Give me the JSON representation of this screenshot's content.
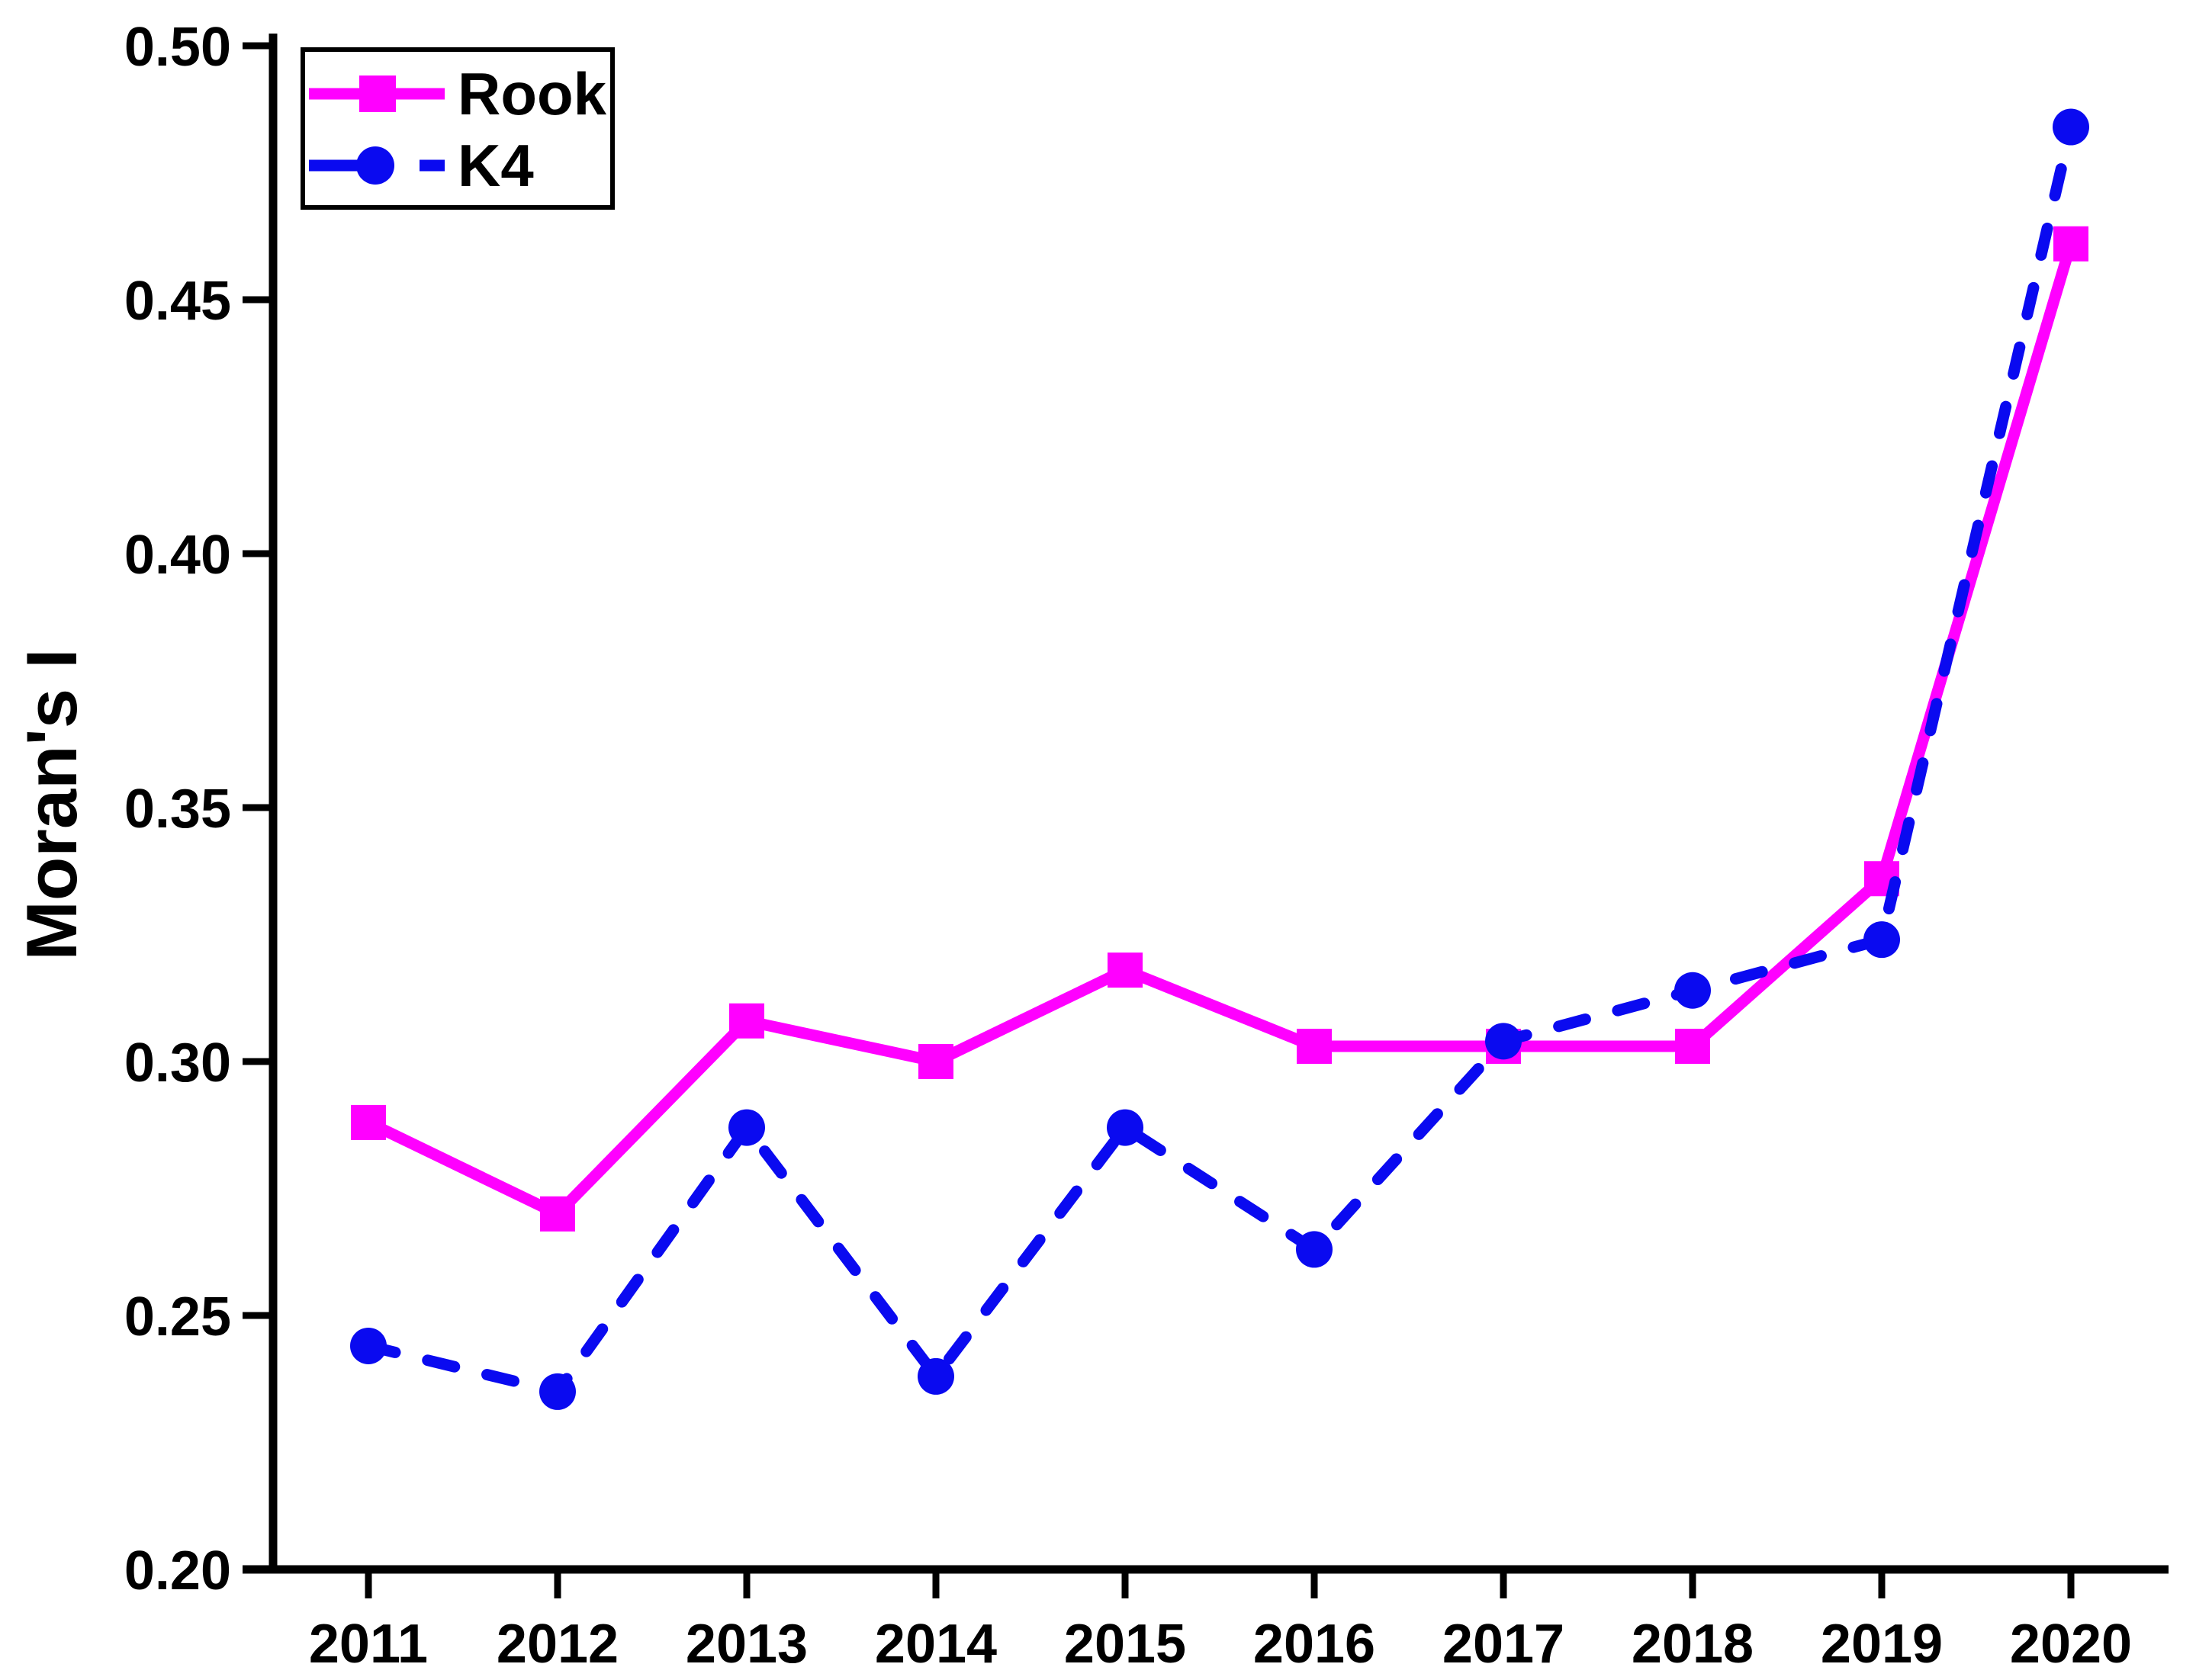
{
  "chart_data": {
    "type": "line",
    "title": "",
    "xlabel": "",
    "ylabel": "Moran's I",
    "ylim": [
      0.2,
      0.5
    ],
    "grid": false,
    "legend_position": "top-left",
    "categories": [
      "2011",
      "2012",
      "2013",
      "2014",
      "2015",
      "2016",
      "2017",
      "2018",
      "2019",
      "2020"
    ],
    "y_ticks": [
      {
        "label": "0.50",
        "value": 0.5
      },
      {
        "label": "0.45",
        "value": 0.45
      },
      {
        "label": "0.40",
        "value": 0.4
      },
      {
        "label": "0.35",
        "value": 0.35
      },
      {
        "label": "0.30",
        "value": 0.3
      },
      {
        "label": "0.25",
        "value": 0.25
      },
      {
        "label": "0.20",
        "value": 0.2
      }
    ],
    "series": [
      {
        "name": "Rook",
        "color": "#FF00FF",
        "line_style": "solid",
        "marker": "square",
        "values": [
          0.288,
          0.27,
          0.308,
          0.3,
          0.318,
          0.303,
          0.303,
          0.303,
          0.336,
          0.461
        ]
      },
      {
        "name": "K4",
        "color": "#0A0AF0",
        "line_style": "dashed",
        "marker": "circle",
        "values": [
          0.244,
          0.235,
          0.287,
          0.238,
          0.287,
          0.263,
          0.304,
          0.314,
          0.324,
          0.484
        ]
      }
    ],
    "axis_color": "#000000",
    "background_color": "#FFFFFF"
  }
}
